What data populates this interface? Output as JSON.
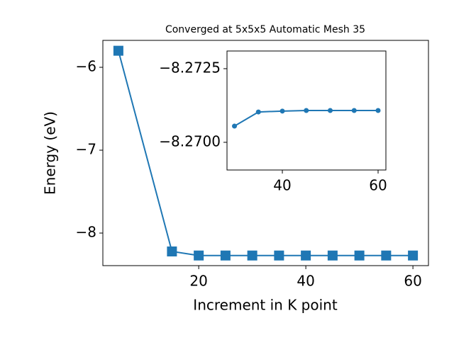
{
  "chart_data": [
    {
      "type": "line",
      "title": "Converged at 5x5x5 Automatic Mesh 35",
      "x_label": "Increment in K point",
      "y_label": "Energy (eV)",
      "x": [
        5,
        15,
        20,
        25,
        30,
        35,
        40,
        45,
        50,
        55,
        60
      ],
      "series": [
        {
          "color": "#1f77b4",
          "marker": "square",
          "values": [
            -5.8,
            -8.222,
            -8.271,
            -8.271,
            -8.271,
            -8.271,
            -8.271,
            -8.271,
            -8.271,
            -8.271,
            -8.271
          ]
        }
      ],
      "xlim": [
        2.1,
        62.9
      ],
      "ylim": [
        -8.393,
        -5.675
      ],
      "xticks": [
        20,
        40,
        60
      ],
      "yticks": [
        {
          "value": -8,
          "label": "−8"
        },
        {
          "value": -7,
          "label": "−7"
        },
        {
          "value": -6,
          "label": "−6"
        }
      ]
    },
    {
      "type": "line",
      "x": [
        30,
        35,
        40,
        45,
        50,
        55,
        60
      ],
      "series": [
        {
          "color": "#1f77b4",
          "marker": "circle",
          "values": [
            -8.27055,
            -8.27103,
            -8.27106,
            -8.27108,
            -8.27108,
            -8.27108,
            -8.27108
          ]
        }
      ],
      "xlim": [
        28.44,
        61.63
      ],
      "ylim": [
        -8.26906,
        -8.2731
      ],
      "xticks": [
        40,
        60
      ],
      "yticks": [
        {
          "value": -8.27,
          "label": "−8.2700"
        },
        {
          "value": -8.2725,
          "label": "−8.2725"
        }
      ]
    }
  ]
}
